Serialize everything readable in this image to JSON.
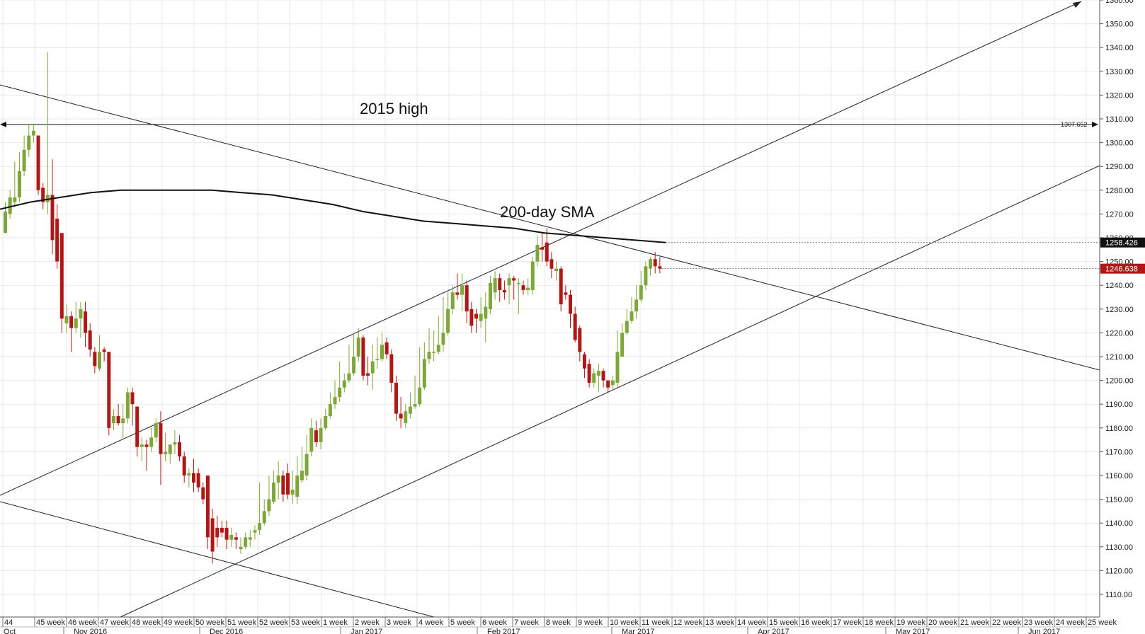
{
  "chart_data": {
    "type": "candlestick",
    "instrument_unit": "price",
    "ylim": [
      1104,
      1361
    ],
    "y_ticks": [
      "1110.00",
      "1120.00",
      "1130.00",
      "1140.00",
      "1150.00",
      "1160.00",
      "1170.00",
      "1180.00",
      "1190.00",
      "1200.00",
      "1210.00",
      "1220.00",
      "1230.00",
      "1240.00",
      "1250.00",
      "1260.00",
      "1270.00",
      "1280.00",
      "1290.00",
      "1300.00",
      "1310.00",
      "1320.00",
      "1330.00",
      "1340.00",
      "1350.00",
      "1360.00"
    ],
    "week_labels": [
      "44",
      "45 week",
      "46 week",
      "47 week",
      "48 week",
      "49 week",
      "50 week",
      "51 week",
      "52 week",
      "53 week",
      "1 week",
      "2 week",
      "3 week",
      "4 week",
      "5 week",
      "6 week",
      "7 week",
      "8 week",
      "9 week",
      "10 week",
      "11 week",
      "12 week",
      "13 week",
      "14 week",
      "15 week",
      "16 week",
      "17 week",
      "18 week",
      "19 week",
      "20 week",
      "21 week",
      "22 week",
      "23 week",
      "24 week",
      "25 week"
    ],
    "month_labels": [
      "Oct",
      "Nov 2016",
      "Dec 2016",
      "Jan 2017",
      "Feb 2017",
      "Mar 2017",
      "Apr 2017",
      "May 2017",
      "Jun 2017"
    ],
    "candles": [
      [
        1262,
        1271,
        1275,
        1262
      ],
      [
        1270,
        1277,
        1280,
        1268
      ],
      [
        1275,
        1277,
        1292,
        1273
      ],
      [
        1277,
        1288,
        1296,
        1275
      ],
      [
        1288,
        1297,
        1303,
        1286
      ],
      [
        1297,
        1303,
        1308,
        1294
      ],
      [
        1303,
        1305,
        1308,
        1300
      ],
      [
        1303,
        1280,
        1302,
        1278
      ],
      [
        1281,
        1275,
        1283,
        1272
      ],
      [
        1275,
        1278,
        1338,
        1270
      ],
      [
        1278,
        1259,
        1293,
        1253
      ],
      [
        1268,
        1250,
        1274,
        1247
      ],
      [
        1262,
        1226,
        1262,
        1220
      ],
      [
        1224,
        1227,
        1232,
        1220
      ],
      [
        1227,
        1222,
        1229,
        1212
      ],
      [
        1222,
        1226,
        1233,
        1220
      ],
      [
        1226,
        1230,
        1233,
        1218
      ],
      [
        1229,
        1220,
        1233,
        1214
      ],
      [
        1221,
        1213,
        1224,
        1210
      ],
      [
        1212,
        1206,
        1214,
        1203
      ],
      [
        1205,
        1212,
        1219,
        1204
      ],
      [
        1213,
        1212,
        1214,
        1208
      ],
      [
        1212,
        1180,
        1212,
        1177
      ],
      [
        1182,
        1185,
        1188,
        1179
      ],
      [
        1185,
        1182,
        1190,
        1181
      ],
      [
        1182,
        1184,
        1190,
        1175
      ],
      [
        1184,
        1195,
        1197,
        1182
      ],
      [
        1195,
        1190,
        1197,
        1181
      ],
      [
        1189,
        1172,
        1189,
        1168
      ],
      [
        1172,
        1173,
        1176,
        1166
      ],
      [
        1173,
        1172,
        1175,
        1162
      ],
      [
        1172,
        1176,
        1180,
        1170
      ],
      [
        1176,
        1182,
        1184,
        1174
      ],
      [
        1182,
        1169,
        1187,
        1156
      ],
      [
        1169,
        1170,
        1178,
        1166
      ],
      [
        1169,
        1173,
        1173,
        1165
      ],
      [
        1173,
        1174,
        1179,
        1169
      ],
      [
        1174,
        1168,
        1177,
        1166
      ],
      [
        1168,
        1160,
        1170,
        1157
      ],
      [
        1160,
        1161,
        1163,
        1155
      ],
      [
        1161,
        1157,
        1167,
        1153
      ],
      [
        1161,
        1155,
        1163,
        1153
      ],
      [
        1155,
        1150,
        1157,
        1148
      ],
      [
        1160,
        1134,
        1160,
        1129
      ],
      [
        1142,
        1128,
        1146,
        1123
      ],
      [
        1138,
        1134,
        1143,
        1130
      ],
      [
        1138,
        1136,
        1141,
        1134
      ],
      [
        1138,
        1133,
        1141,
        1129
      ],
      [
        1133,
        1135,
        1138,
        1130
      ],
      [
        1134,
        1133,
        1136,
        1129
      ],
      [
        1129,
        1130,
        1134,
        1127
      ],
      [
        1130,
        1134,
        1136,
        1129
      ],
      [
        1133,
        1134,
        1137,
        1130
      ],
      [
        1136,
        1137,
        1139,
        1133
      ],
      [
        1137,
        1140,
        1157,
        1135
      ],
      [
        1140,
        1145,
        1150,
        1139
      ],
      [
        1145,
        1150,
        1160,
        1143
      ],
      [
        1149,
        1157,
        1162,
        1148
      ],
      [
        1157,
        1160,
        1166,
        1150
      ],
      [
        1160,
        1152,
        1162,
        1149
      ],
      [
        1161,
        1152,
        1165,
        1150
      ],
      [
        1152,
        1154,
        1162,
        1148
      ],
      [
        1151,
        1160,
        1168,
        1148
      ],
      [
        1158,
        1162,
        1172,
        1157
      ],
      [
        1160,
        1169,
        1177,
        1158
      ],
      [
        1170,
        1180,
        1184,
        1168
      ],
      [
        1179,
        1174,
        1183,
        1172
      ],
      [
        1174,
        1180,
        1184,
        1171
      ],
      [
        1180,
        1185,
        1188,
        1179
      ],
      [
        1185,
        1190,
        1195,
        1184
      ],
      [
        1190,
        1193,
        1200,
        1188
      ],
      [
        1193,
        1197,
        1208,
        1191
      ],
      [
        1197,
        1200,
        1203,
        1195
      ],
      [
        1200,
        1203,
        1215,
        1199
      ],
      [
        1203,
        1210,
        1220,
        1202
      ],
      [
        1210,
        1218,
        1222,
        1208
      ],
      [
        1218,
        1202,
        1219,
        1200
      ],
      [
        1203,
        1202,
        1210,
        1198
      ],
      [
        1203,
        1208,
        1215,
        1196
      ],
      [
        1209,
        1209,
        1218,
        1205
      ],
      [
        1209,
        1215,
        1220,
        1208
      ],
      [
        1216,
        1211,
        1218,
        1209
      ],
      [
        1211,
        1199,
        1213,
        1195
      ],
      [
        1199,
        1186,
        1202,
        1183
      ],
      [
        1186,
        1184,
        1193,
        1180
      ],
      [
        1182,
        1187,
        1190,
        1180
      ],
      [
        1186,
        1189,
        1195,
        1184
      ],
      [
        1189,
        1190,
        1202,
        1188
      ],
      [
        1190,
        1197,
        1214,
        1189
      ],
      [
        1197,
        1209,
        1216,
        1196
      ],
      [
        1209,
        1212,
        1222,
        1207
      ],
      [
        1212,
        1212,
        1221,
        1208
      ],
      [
        1212,
        1215,
        1227,
        1211
      ],
      [
        1215,
        1220,
        1235,
        1212
      ],
      [
        1220,
        1230,
        1237,
        1219
      ],
      [
        1230,
        1237,
        1240,
        1228
      ],
      [
        1237,
        1236,
        1245,
        1234
      ],
      [
        1236,
        1240,
        1245,
        1229
      ],
      [
        1240,
        1229,
        1242,
        1224
      ],
      [
        1230,
        1223,
        1233,
        1220
      ],
      [
        1228,
        1226,
        1230,
        1220
      ],
      [
        1225,
        1228,
        1235,
        1222
      ],
      [
        1226,
        1231,
        1237,
        1216
      ],
      [
        1230,
        1241,
        1244,
        1228
      ],
      [
        1237,
        1243,
        1246,
        1234
      ],
      [
        1243,
        1238,
        1245,
        1233
      ],
      [
        1238,
        1237,
        1242,
        1234
      ],
      [
        1240,
        1243,
        1245,
        1232
      ],
      [
        1243,
        1242,
        1244,
        1234
      ],
      [
        1241,
        1241,
        1243,
        1228
      ],
      [
        1240,
        1238,
        1242,
        1236
      ],
      [
        1238,
        1239,
        1243,
        1236
      ],
      [
        1238,
        1250,
        1252,
        1236
      ],
      [
        1250,
        1257,
        1261,
        1248
      ],
      [
        1256,
        1255,
        1262,
        1250
      ],
      [
        1258,
        1250,
        1264,
        1248
      ],
      [
        1251,
        1247,
        1254,
        1243
      ],
      [
        1246,
        1247,
        1250,
        1242
      ],
      [
        1247,
        1232,
        1248,
        1229
      ],
      [
        1237,
        1236,
        1240,
        1234
      ],
      [
        1236,
        1228,
        1238,
        1222
      ],
      [
        1228,
        1217,
        1231,
        1216
      ],
      [
        1222,
        1212,
        1223,
        1208
      ],
      [
        1211,
        1205,
        1212,
        1201
      ],
      [
        1207,
        1199,
        1209,
        1197
      ],
      [
        1199,
        1203,
        1205,
        1197
      ],
      [
        1202,
        1204,
        1207,
        1195
      ],
      [
        1204,
        1200,
        1205,
        1197
      ],
      [
        1200,
        1197,
        1200,
        1195
      ],
      [
        1198,
        1200,
        1202,
        1196
      ],
      [
        1199,
        1212,
        1221,
        1197
      ],
      [
        1210,
        1220,
        1224,
        1216
      ],
      [
        1220,
        1225,
        1230,
        1219
      ],
      [
        1225,
        1229,
        1235,
        1224
      ],
      [
        1229,
        1234,
        1240,
        1226
      ],
      [
        1234,
        1240,
        1246,
        1233
      ],
      [
        1240,
        1248,
        1250,
        1238
      ],
      [
        1247,
        1251,
        1252,
        1244
      ],
      [
        1251,
        1248,
        1254,
        1245
      ],
      [
        1248,
        1247,
        1252,
        1245
      ]
    ],
    "sma_200": [
      1272,
      1275,
      1277,
      1279,
      1280,
      1280,
      1280,
      1280,
      1279,
      1278,
      1276,
      1274,
      1271,
      1269,
      1267,
      1266,
      1265,
      1264,
      1262,
      1261,
      1260,
      1259,
      1258
    ],
    "horizontal_level": 1307.652,
    "horizontal_level_label": "1307.652",
    "sma_last_label": "1258.426",
    "price_last_label": "1246.638",
    "annotations": [
      "2015 high",
      "200-day SMA"
    ],
    "colors": {
      "up": "#7ea63a",
      "down": "#b01818",
      "wick": "#333333",
      "badge_sma": "#111111",
      "badge_price": "#b01818",
      "line": "#111111",
      "grid": "#e8e8e8"
    }
  }
}
